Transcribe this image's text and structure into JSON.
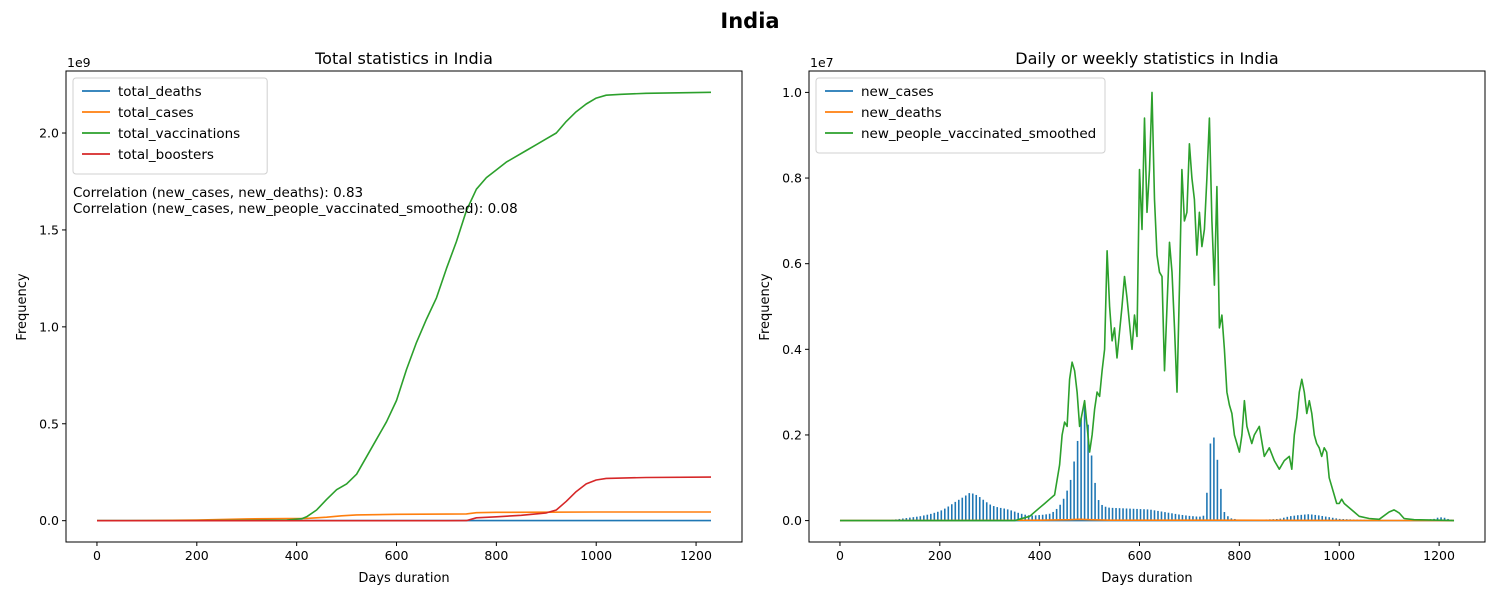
{
  "suptitle": "India",
  "colors": {
    "c0": "#1f77b4",
    "c1": "#ff7f0e",
    "c2": "#2ca02c",
    "c3": "#d62728"
  },
  "annotations": [
    "Correlation (new_cases, new_deaths): 0.83",
    "Correlation (new_cases, new_people_vaccinated_smoothed): 0.08"
  ],
  "chart_data": [
    {
      "type": "line",
      "title": "Total statistics in India",
      "xlabel": "Days duration",
      "ylabel": "Frequency",
      "offset_text": "1e9",
      "xlim": [
        -62,
        1292
      ],
      "ylim": [
        -0.11,
        2.32
      ],
      "xticks": [
        0,
        200,
        400,
        600,
        800,
        1000,
        1200
      ],
      "xtick_labels": [
        "0",
        "200",
        "400",
        "600",
        "800",
        "1000",
        "1200"
      ],
      "yticks": [
        0,
        0.5,
        1.0,
        1.5,
        2.0
      ],
      "ytick_labels": [
        "0.0",
        "0.5",
        "1.0",
        "1.5",
        "2.0"
      ],
      "legend_loc": "upper-left",
      "series": [
        {
          "name": "total_deaths",
          "color": "#1f77b4",
          "x": [
            0,
            60,
            120,
            200,
            300,
            400,
            480,
            1000,
            1230
          ],
          "y": [
            0,
            0,
            0,
            0.0002,
            0.0002,
            0.0003,
            0.0004,
            0.0005,
            0.0005
          ]
        },
        {
          "name": "total_cases",
          "color": "#ff7f0e",
          "x": [
            0,
            100,
            200,
            300,
            380,
            420,
            460,
            490,
            520,
            600,
            700,
            740,
            760,
            800,
            900,
            1000,
            1230
          ],
          "y": [
            0,
            0.0005,
            0.003,
            0.009,
            0.011,
            0.012,
            0.018,
            0.025,
            0.03,
            0.033,
            0.034,
            0.035,
            0.041,
            0.043,
            0.044,
            0.045,
            0.045
          ]
        },
        {
          "name": "total_vaccinations",
          "color": "#2ca02c",
          "x": [
            0,
            200,
            380,
            410,
            420,
            440,
            460,
            480,
            500,
            520,
            540,
            560,
            580,
            600,
            620,
            640,
            660,
            680,
            700,
            720,
            740,
            760,
            780,
            800,
            820,
            840,
            860,
            880,
            900,
            920,
            940,
            960,
            980,
            1000,
            1020,
            1050,
            1100,
            1230
          ],
          "y": [
            0,
            0,
            0.003,
            0.01,
            0.02,
            0.055,
            0.11,
            0.16,
            0.19,
            0.24,
            0.33,
            0.42,
            0.51,
            0.62,
            0.78,
            0.92,
            1.04,
            1.15,
            1.3,
            1.44,
            1.6,
            1.71,
            1.77,
            1.81,
            1.85,
            1.88,
            1.91,
            1.94,
            1.97,
            2.0,
            2.06,
            2.11,
            2.15,
            2.18,
            2.195,
            2.2,
            2.205,
            2.21
          ]
        },
        {
          "name": "total_boosters",
          "color": "#d62728",
          "x": [
            0,
            500,
            700,
            740,
            760,
            800,
            850,
            900,
            920,
            940,
            960,
            980,
            1000,
            1020,
            1100,
            1230
          ],
          "y": [
            0,
            0,
            0,
            0.0005,
            0.015,
            0.02,
            0.028,
            0.04,
            0.055,
            0.1,
            0.15,
            0.19,
            0.21,
            0.218,
            0.223,
            0.225
          ]
        }
      ]
    },
    {
      "type": "line",
      "title": "Daily or weekly statistics in India",
      "xlabel": "Days duration",
      "ylabel": "Frequency",
      "offset_text": "1e7",
      "xlim": [
        -62,
        1292
      ],
      "ylim": [
        -0.05,
        1.05
      ],
      "xticks": [
        0,
        200,
        400,
        600,
        800,
        1000,
        1200
      ],
      "xtick_labels": [
        "0",
        "200",
        "400",
        "600",
        "800",
        "1000",
        "1200"
      ],
      "yticks": [
        0,
        0.2,
        0.4,
        0.6,
        0.8,
        1.0
      ],
      "ytick_labels": [
        "0.0",
        "0.2",
        "0.4",
        "0.6",
        "0.8",
        "1.0"
      ],
      "legend_loc": "upper-left",
      "series": [
        {
          "name": "new_cases",
          "color": "#1f77b4",
          "style": "weekly-bars",
          "x": [
            0,
            20,
            40,
            60,
            80,
            100,
            120,
            140,
            160,
            180,
            200,
            210,
            220,
            230,
            240,
            250,
            260,
            270,
            280,
            290,
            300,
            310,
            320,
            330,
            340,
            350,
            360,
            370,
            380,
            390,
            400,
            410,
            420,
            430,
            440,
            450,
            460,
            465,
            470,
            475,
            480,
            485,
            490,
            495,
            500,
            505,
            510,
            515,
            520,
            530,
            540,
            560,
            580,
            600,
            620,
            640,
            660,
            680,
            700,
            720,
            730,
            735,
            740,
            745,
            750,
            755,
            760,
            765,
            770,
            780,
            800,
            840,
            880,
            900,
            920,
            940,
            960,
            980,
            1000,
            1040,
            1080,
            1120,
            1160,
            1190,
            1200,
            1210,
            1220,
            1230
          ],
          "y": [
            0,
            0,
            0,
            0.0001,
            0.0005,
            0.001,
            0.004,
            0.007,
            0.01,
            0.015,
            0.022,
            0.028,
            0.035,
            0.043,
            0.05,
            0.057,
            0.065,
            0.062,
            0.055,
            0.046,
            0.038,
            0.033,
            0.03,
            0.028,
            0.025,
            0.021,
            0.017,
            0.014,
            0.012,
            0.012,
            0.013,
            0.014,
            0.016,
            0.022,
            0.035,
            0.055,
            0.085,
            0.11,
            0.145,
            0.18,
            0.21,
            0.26,
            0.275,
            0.24,
            0.2,
            0.14,
            0.095,
            0.06,
            0.04,
            0.033,
            0.03,
            0.029,
            0.028,
            0.027,
            0.026,
            0.022,
            0.018,
            0.014,
            0.011,
            0.009,
            0.012,
            0.065,
            0.16,
            0.21,
            0.19,
            0.15,
            0.11,
            0.05,
            0.02,
            0.006,
            0.002,
            0.002,
            0.004,
            0.01,
            0.013,
            0.015,
            0.012,
            0.008,
            0.004,
            0.002,
            0.001,
            0.001,
            0.001,
            0.004,
            0.008,
            0.007,
            0.003,
            0.001
          ]
        },
        {
          "name": "new_deaths",
          "color": "#ff7f0e",
          "x": [
            0,
            200,
            400,
            460,
            480,
            500,
            540,
            740,
            760,
            1230
          ],
          "y": [
            0,
            0.0005,
            0.001,
            0.002,
            0.003,
            0.002,
            0.001,
            0.001,
            0.001,
            0
          ]
        },
        {
          "name": "new_people_vaccinated_smoothed",
          "color": "#2ca02c",
          "x": [
            0,
            350,
            380,
            400,
            410,
            420,
            430,
            440,
            445,
            450,
            455,
            460,
            465,
            470,
            475,
            480,
            485,
            490,
            495,
            500,
            505,
            510,
            515,
            520,
            525,
            530,
            535,
            540,
            545,
            550,
            555,
            560,
            565,
            570,
            575,
            580,
            585,
            590,
            595,
            600,
            605,
            610,
            615,
            620,
            625,
            630,
            635,
            640,
            645,
            650,
            655,
            660,
            665,
            670,
            675,
            680,
            685,
            690,
            695,
            700,
            705,
            710,
            715,
            720,
            725,
            730,
            735,
            740,
            745,
            750,
            755,
            760,
            765,
            770,
            775,
            780,
            785,
            790,
            795,
            800,
            805,
            810,
            815,
            820,
            825,
            830,
            840,
            850,
            860,
            870,
            880,
            890,
            900,
            905,
            910,
            915,
            920,
            925,
            930,
            935,
            940,
            945,
            950,
            955,
            960,
            965,
            970,
            975,
            980,
            985,
            990,
            995,
            1000,
            1005,
            1010,
            1020,
            1030,
            1040,
            1060,
            1080,
            1100,
            1110,
            1120,
            1130,
            1150,
            1200,
            1230
          ],
          "y": [
            0,
            0,
            0.01,
            0.03,
            0.04,
            0.05,
            0.06,
            0.13,
            0.2,
            0.23,
            0.22,
            0.33,
            0.37,
            0.35,
            0.3,
            0.22,
            0.25,
            0.28,
            0.22,
            0.16,
            0.2,
            0.26,
            0.3,
            0.29,
            0.35,
            0.4,
            0.63,
            0.5,
            0.42,
            0.45,
            0.38,
            0.44,
            0.5,
            0.57,
            0.52,
            0.46,
            0.4,
            0.48,
            0.43,
            0.82,
            0.68,
            0.94,
            0.72,
            0.82,
            1.0,
            0.75,
            0.62,
            0.58,
            0.57,
            0.35,
            0.5,
            0.65,
            0.58,
            0.45,
            0.3,
            0.55,
            0.82,
            0.7,
            0.72,
            0.88,
            0.8,
            0.75,
            0.62,
            0.72,
            0.64,
            0.68,
            0.8,
            0.94,
            0.7,
            0.55,
            0.78,
            0.45,
            0.48,
            0.4,
            0.3,
            0.27,
            0.25,
            0.2,
            0.18,
            0.16,
            0.2,
            0.28,
            0.22,
            0.2,
            0.18,
            0.2,
            0.22,
            0.15,
            0.17,
            0.14,
            0.12,
            0.14,
            0.15,
            0.12,
            0.2,
            0.24,
            0.3,
            0.33,
            0.3,
            0.25,
            0.28,
            0.25,
            0.2,
            0.18,
            0.17,
            0.15,
            0.17,
            0.16,
            0.1,
            0.08,
            0.06,
            0.04,
            0.04,
            0.05,
            0.04,
            0.03,
            0.02,
            0.01,
            0.005,
            0.003,
            0.02,
            0.025,
            0.018,
            0.005,
            0.002,
            0.001,
            0
          ]
        }
      ]
    }
  ]
}
